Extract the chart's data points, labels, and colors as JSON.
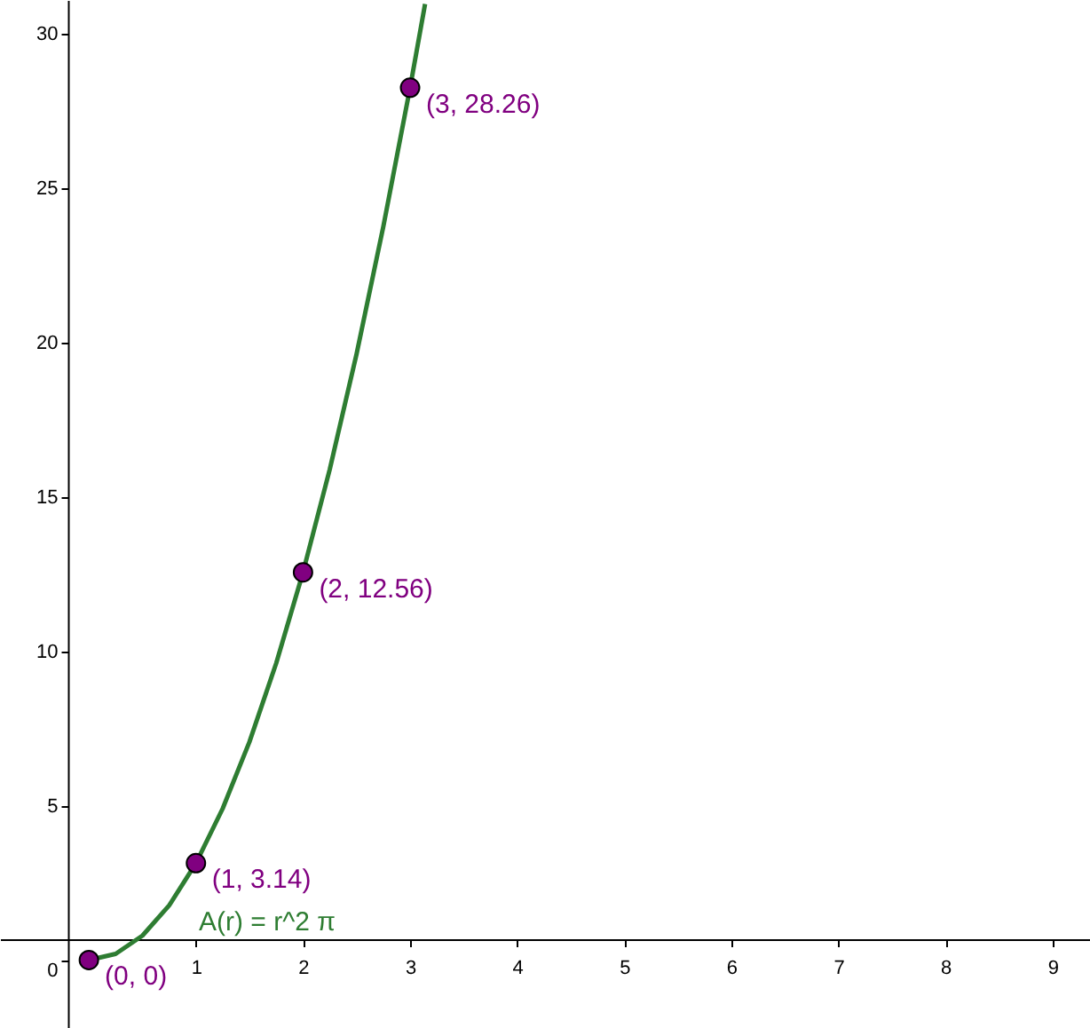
{
  "chart_data": {
    "type": "line",
    "xlim": [
      -0.83,
      9.35
    ],
    "ylim": [
      -2.2,
      31.1
    ],
    "xticks": [
      1,
      2,
      3,
      4,
      5,
      6,
      7,
      8,
      9
    ],
    "yticks": [
      0,
      5,
      10,
      15,
      20,
      25,
      30
    ],
    "grid": false,
    "series": [
      {
        "color": "#2e7d32",
        "x": [
          0,
          0.25,
          0.5,
          0.75,
          1,
          1.25,
          1.5,
          1.75,
          2,
          2.25,
          2.5,
          2.75,
          3,
          3.14
        ],
        "values": [
          0,
          0.2,
          0.79,
          1.77,
          3.14,
          4.91,
          7.07,
          9.62,
          12.56,
          15.9,
          19.63,
          23.76,
          28.26,
          30.97
        ],
        "line_style": "solid",
        "marker": "none"
      },
      {
        "type": "scatter",
        "color": "#800080",
        "x": [
          0,
          1,
          2,
          3
        ],
        "values": [
          0,
          3.14,
          12.56,
          28.26
        ],
        "marker": "circle",
        "value_labels": [
          "(0, 0)",
          "(1, 3.14)",
          "(2, 12.56)",
          "(3, 28.26)"
        ]
      }
    ],
    "annotations": [
      "A(r) = r^2 π"
    ]
  }
}
